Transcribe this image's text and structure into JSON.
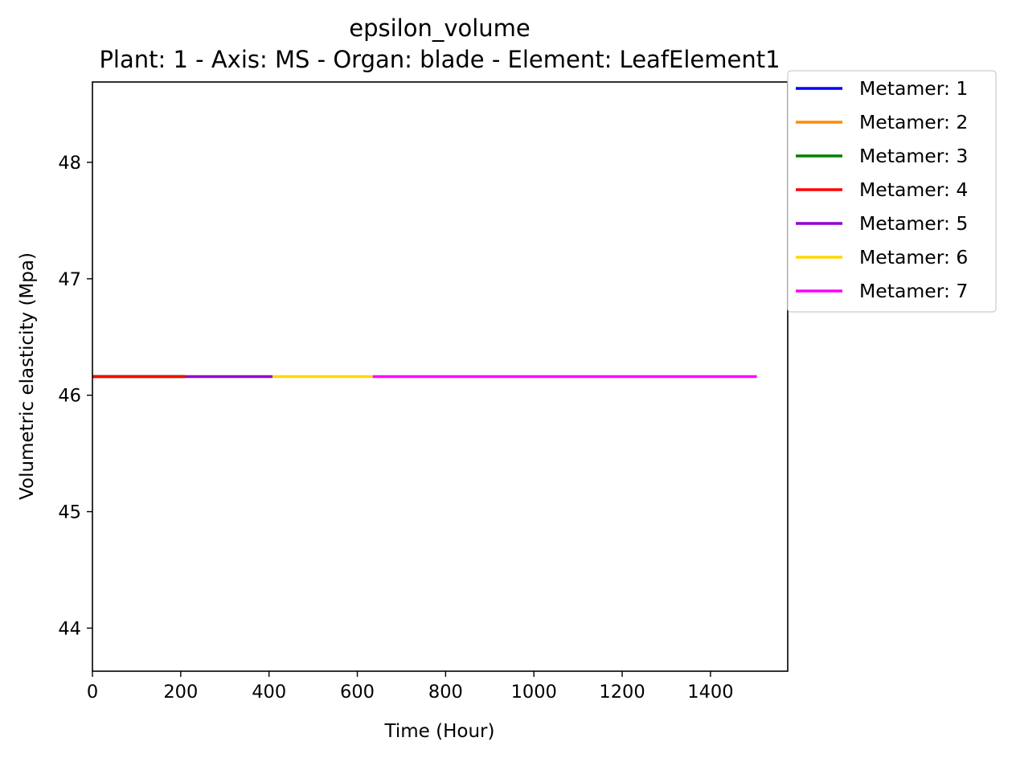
{
  "chart_data": {
    "type": "line",
    "title": "epsilon_volume",
    "subtitle": "Plant: 1 - Axis: MS - Organ: blade - Element: LeafElement1",
    "xlabel": "Time (Hour)",
    "ylabel": "Volumetric elasticity (Mpa)",
    "xlim": [
      0,
      1575
    ],
    "ylim": [
      43.63,
      48.69
    ],
    "xticks": [
      0,
      200,
      400,
      600,
      800,
      1000,
      1200,
      1400
    ],
    "yticks": [
      44,
      45,
      46,
      47,
      48
    ],
    "grid": false,
    "legend_position": "outside-top-right",
    "series": [
      {
        "name": "Metamer: 1",
        "color": "#0000ff",
        "x": [
          0,
          210
        ],
        "y": [
          46.16,
          46.16
        ]
      },
      {
        "name": "Metamer: 2",
        "color": "#ff8c00",
        "x": [
          0,
          210
        ],
        "y": [
          46.16,
          46.16
        ]
      },
      {
        "name": "Metamer: 3",
        "color": "#008000",
        "x": [
          0,
          210
        ],
        "y": [
          46.16,
          46.16
        ]
      },
      {
        "name": "Metamer: 4",
        "color": "#ff0000",
        "x": [
          0,
          210
        ],
        "y": [
          46.16,
          46.16
        ]
      },
      {
        "name": "Metamer: 5",
        "color": "#9400d3",
        "x": [
          210,
          408
        ],
        "y": [
          46.16,
          46.16
        ]
      },
      {
        "name": "Metamer: 6",
        "color": "#ffd700",
        "x": [
          408,
          635
        ],
        "y": [
          46.16,
          46.16
        ]
      },
      {
        "name": "Metamer: 7",
        "color": "#ff00ff",
        "x": [
          635,
          1505
        ],
        "y": [
          46.16,
          46.16
        ]
      }
    ]
  }
}
